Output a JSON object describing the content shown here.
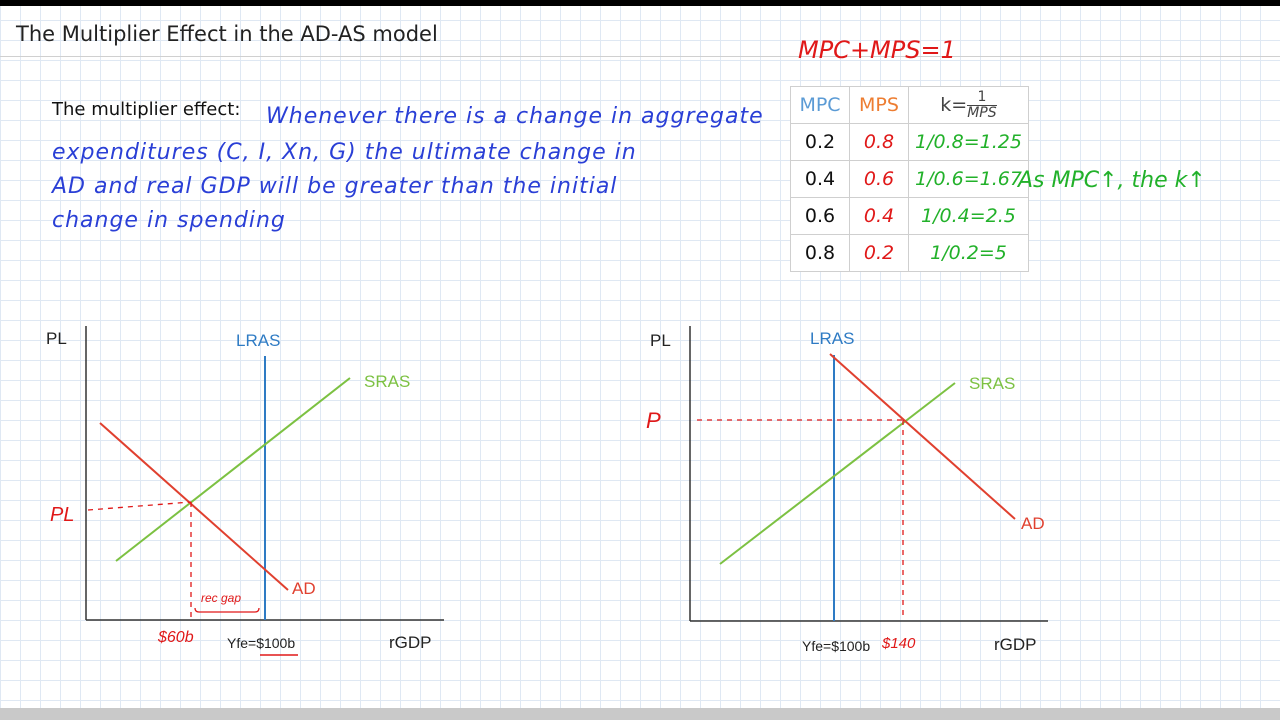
{
  "title": "The Multiplier Effect in the AD-AS model",
  "definition": {
    "label": "The multiplier effect:",
    "lines": [
      "Whenever there is a change in aggregate",
      "expenditures (C, I, Xn, G) the ultimate change in",
      "AD and real GDP will be greater than the initial",
      "change in spending"
    ]
  },
  "identity": "MPC+MPS=1",
  "table": {
    "headers": {
      "mpc": "MPC",
      "mps": "MPS",
      "k_prefix": "k=",
      "k_num": "1",
      "k_den": "MPS"
    },
    "rows": [
      {
        "mpc": "0.2",
        "mps": "0.8",
        "k": "1/0.8=1.25"
      },
      {
        "mpc": "0.4",
        "mps": "0.6",
        "k": "1/0.6=1.67"
      },
      {
        "mpc": "0.6",
        "mps": "0.4",
        "k": "1/0.4=2.5"
      },
      {
        "mpc": "0.8",
        "mps": "0.2",
        "k": "1/0.2=5"
      }
    ]
  },
  "note": "As MPC↑, the k↑",
  "colors": {
    "lras": "#2e7bc4",
    "sras": "#7cc142",
    "ad": "#e0402f",
    "handwriting_red": "#e01818",
    "handwriting_green": "#22b12a",
    "handwriting_blue": "#2a3fd6"
  },
  "graph1": {
    "ylabel": "PL",
    "xlabel": "rGDP",
    "lras": "LRAS",
    "sras": "SRAS",
    "ad": "AD",
    "price_mark": "PL",
    "gdp_mark": "$60b",
    "yfe_prefix": "Yfe=",
    "yfe_value": "$100b",
    "gap_label": "rec gap"
  },
  "graph2": {
    "ylabel": "PL",
    "xlabel": "rGDP",
    "lras": "LRAS",
    "sras": "SRAS",
    "ad": "AD",
    "price_mark": "P",
    "yfe": "Yfe=$100b",
    "gdp_mark": "$140"
  }
}
